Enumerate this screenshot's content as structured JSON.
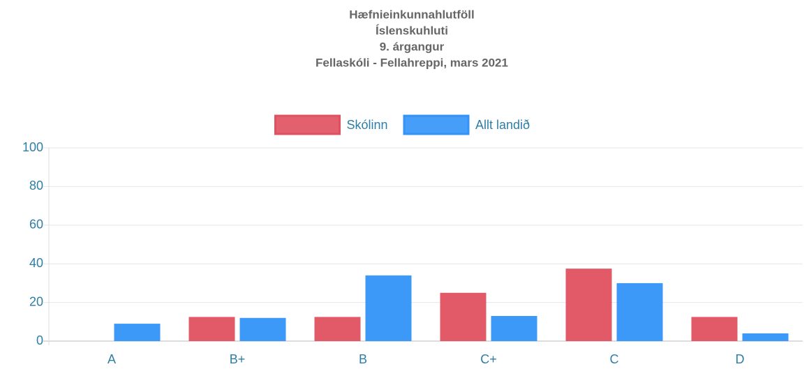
{
  "chart_data": {
    "type": "bar",
    "title": [
      "Hæfnieinkunnahlutföll",
      "Íslenskuhluti",
      "9. árgangur",
      "Fellaskóli - Fellahreppi, mars 2021"
    ],
    "categories": [
      "A",
      "B+",
      "B",
      "C+",
      "C",
      "D"
    ],
    "series": [
      {
        "name": "Skólinn",
        "color": "#e0505f",
        "values": [
          0,
          12.5,
          12.5,
          25,
          37.5,
          12.5
        ]
      },
      {
        "name": "Allt landið",
        "color": "#3393f8",
        "values": [
          9,
          12,
          34,
          13,
          30,
          4
        ]
      }
    ],
    "ylim": [
      0,
      100
    ],
    "yticks": [
      0,
      20,
      40,
      60,
      80,
      100
    ],
    "grid": true,
    "legend": "top"
  }
}
